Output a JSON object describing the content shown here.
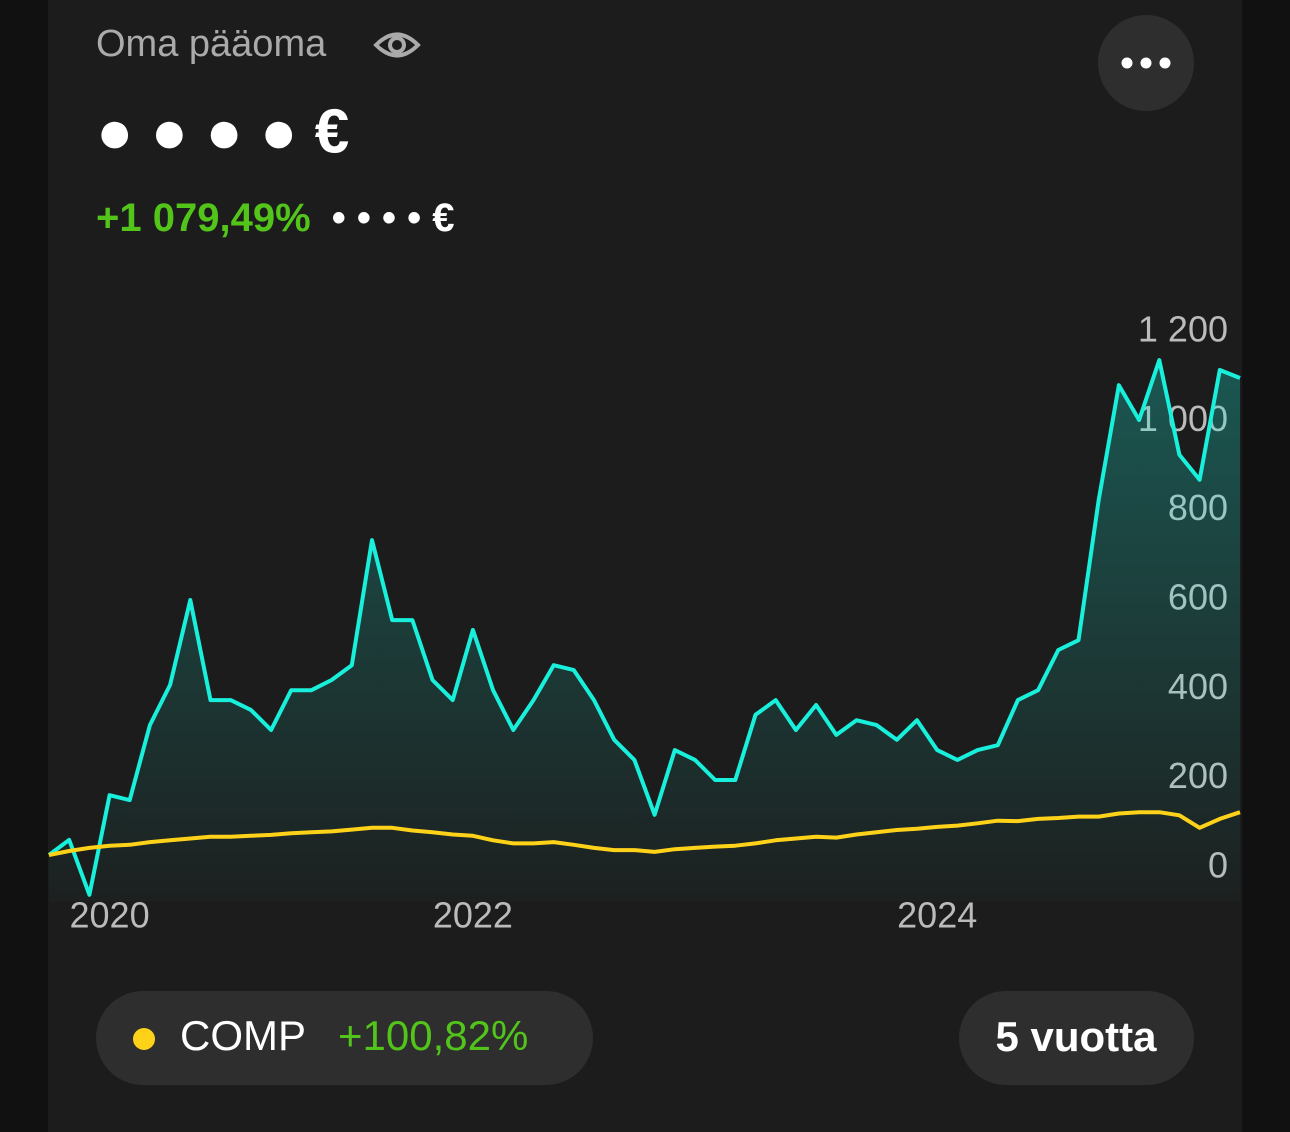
{
  "header": {
    "title": "Oma pääoma",
    "value": "● ● ● ● €",
    "change": "+1 079,49%",
    "change_amount": "• • • • €"
  },
  "chart_data": {
    "type": "line",
    "categories": [
      null,
      null,
      null,
      "2020",
      null,
      null,
      null,
      null,
      null,
      null,
      null,
      null,
      null,
      null,
      null,
      null,
      null,
      null,
      null,
      null,
      null,
      "2022",
      null,
      null,
      null,
      null,
      null,
      null,
      null,
      null,
      null,
      null,
      null,
      null,
      null,
      null,
      null,
      null,
      null,
      null,
      null,
      null,
      null,
      null,
      "2024",
      null,
      null,
      null,
      null,
      null,
      null,
      null,
      null,
      null,
      null,
      null,
      null,
      null,
      null,
      null
    ],
    "series": [
      {
        "color": "#19f0dc",
        "values": [
          29,
          63,
          -60,
          163,
          152,
          320,
          410,
          600,
          376,
          376,
          354,
          309,
          398,
          398,
          421,
          454,
          734,
          555,
          555,
          421,
          376,
          533,
          398,
          309,
          376,
          454,
          443,
          376,
          287,
          242,
          119,
          264,
          242,
          197,
          197,
          343,
          376,
          309,
          365,
          298,
          331,
          320,
          287,
          331,
          264,
          242,
          264,
          275,
          376,
          398,
          488,
          510,
          824,
          1081,
          1003,
          1137,
          925,
          869,
          1115,
          1097
        ]
      },
      {
        "name": "COMP",
        "color": "#ffd21a",
        "values": [
          29,
          38,
          45,
          50,
          52,
          58,
          62,
          66,
          70,
          70,
          72,
          74,
          78,
          80,
          82,
          86,
          90,
          90,
          84,
          80,
          75,
          72,
          62,
          55,
          55,
          58,
          52,
          45,
          40,
          40,
          36,
          42,
          45,
          48,
          50,
          55,
          62,
          66,
          70,
          68,
          75,
          80,
          85,
          88,
          92,
          95,
          100,
          106,
          105,
          110,
          112,
          115,
          115,
          122,
          125,
          125,
          118,
          90,
          110,
          125
        ]
      }
    ],
    "ylim": [
      -75,
      1215
    ],
    "yticks": [
      0,
      200,
      400,
      600,
      800,
      {
        "value": 1000,
        "label": "1 000"
      },
      {
        "value": 1200,
        "label": "1 200"
      }
    ]
  },
  "benchmark": {
    "change": "+100,82%"
  },
  "period": "5 vuotta"
}
